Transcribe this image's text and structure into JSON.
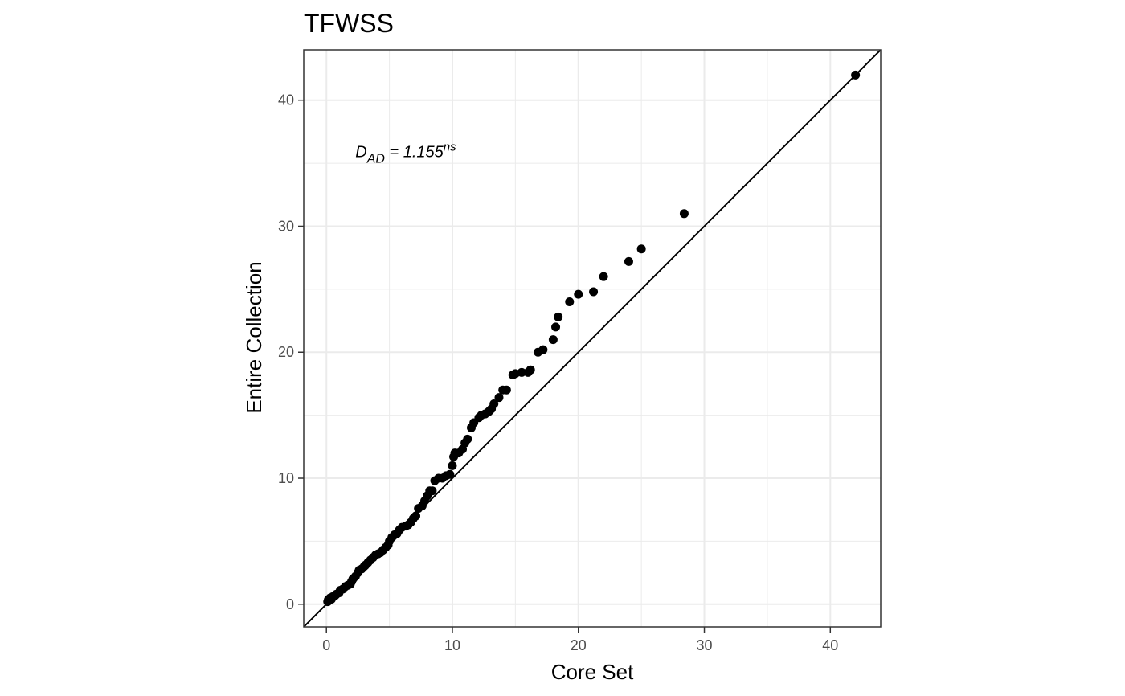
{
  "chart_data": {
    "type": "scatter",
    "title": "TFWSS",
    "xlabel": "Core Set",
    "ylabel": "Entire Collection",
    "xlim": [
      -1.8,
      44
    ],
    "ylim": [
      -1.8,
      44
    ],
    "x_ticks": [
      0,
      10,
      20,
      30,
      40
    ],
    "y_ticks": [
      0,
      10,
      20,
      30,
      40
    ],
    "x_tick_labels": [
      "0",
      "10",
      "20",
      "30",
      "40"
    ],
    "y_tick_labels": [
      "0",
      "10",
      "20",
      "30",
      "40"
    ],
    "grid": true,
    "reference_line": {
      "slope": 1,
      "intercept": 0,
      "color": "#000000"
    },
    "annotation": {
      "base": "D",
      "subscript": "AD",
      "equals": " = 1.155",
      "superscript": "ns",
      "x": 2.3,
      "y": 35.5
    },
    "point_color": "#000000",
    "points": [
      [
        0.1,
        0.2
      ],
      [
        0.15,
        0.35
      ],
      [
        0.2,
        0.3
      ],
      [
        0.3,
        0.5
      ],
      [
        0.4,
        0.4
      ],
      [
        0.5,
        0.6
      ],
      [
        0.7,
        0.7
      ],
      [
        0.8,
        0.8
      ],
      [
        1.0,
        0.9
      ],
      [
        1.1,
        1.1
      ],
      [
        1.3,
        1.2
      ],
      [
        1.5,
        1.4
      ],
      [
        1.7,
        1.5
      ],
      [
        1.9,
        1.6
      ],
      [
        2.0,
        1.8
      ],
      [
        2.1,
        2.0
      ],
      [
        2.3,
        2.2
      ],
      [
        2.5,
        2.5
      ],
      [
        2.6,
        2.7
      ],
      [
        2.8,
        2.8
      ],
      [
        3.0,
        3.0
      ],
      [
        3.1,
        3.1
      ],
      [
        3.3,
        3.3
      ],
      [
        3.5,
        3.5
      ],
      [
        3.7,
        3.7
      ],
      [
        3.9,
        3.9
      ],
      [
        4.1,
        4.0
      ],
      [
        4.3,
        4.1
      ],
      [
        4.5,
        4.3
      ],
      [
        4.7,
        4.5
      ],
      [
        4.9,
        4.7
      ],
      [
        5.0,
        5.0
      ],
      [
        5.2,
        5.3
      ],
      [
        5.4,
        5.5
      ],
      [
        5.6,
        5.6
      ],
      [
        5.8,
        5.9
      ],
      [
        6.0,
        6.1
      ],
      [
        6.3,
        6.2
      ],
      [
        6.5,
        6.3
      ],
      [
        6.7,
        6.5
      ],
      [
        6.9,
        6.8
      ],
      [
        7.1,
        7.0
      ],
      [
        7.3,
        7.6
      ],
      [
        7.6,
        7.8
      ],
      [
        7.8,
        8.2
      ],
      [
        8.0,
        8.6
      ],
      [
        8.2,
        9.0
      ],
      [
        8.4,
        9.0
      ],
      [
        8.6,
        9.8
      ],
      [
        8.9,
        10.0
      ],
      [
        9.2,
        10.0
      ],
      [
        9.5,
        10.2
      ],
      [
        9.8,
        10.3
      ],
      [
        10.0,
        11.0
      ],
      [
        10.1,
        11.7
      ],
      [
        10.2,
        12.0
      ],
      [
        10.5,
        12.0
      ],
      [
        10.8,
        12.3
      ],
      [
        11.0,
        12.8
      ],
      [
        11.2,
        13.1
      ],
      [
        11.5,
        14.0
      ],
      [
        11.7,
        14.4
      ],
      [
        12.1,
        14.8
      ],
      [
        12.3,
        15.0
      ],
      [
        12.6,
        15.1
      ],
      [
        12.9,
        15.3
      ],
      [
        13.1,
        15.5
      ],
      [
        13.3,
        15.9
      ],
      [
        13.7,
        16.4
      ],
      [
        14.0,
        17.0
      ],
      [
        14.3,
        17.0
      ],
      [
        14.8,
        18.2
      ],
      [
        15.0,
        18.3
      ],
      [
        15.5,
        18.4
      ],
      [
        16.0,
        18.4
      ],
      [
        16.2,
        18.6
      ],
      [
        16.8,
        20.0
      ],
      [
        17.2,
        20.2
      ],
      [
        18.0,
        21.0
      ],
      [
        18.2,
        22.0
      ],
      [
        18.4,
        22.8
      ],
      [
        19.3,
        24.0
      ],
      [
        20.0,
        24.6
      ],
      [
        21.2,
        24.8
      ],
      [
        22.0,
        26.0
      ],
      [
        24.0,
        27.2
      ],
      [
        25.0,
        28.2
      ],
      [
        28.4,
        31.0
      ],
      [
        42.0,
        42.0
      ]
    ]
  }
}
